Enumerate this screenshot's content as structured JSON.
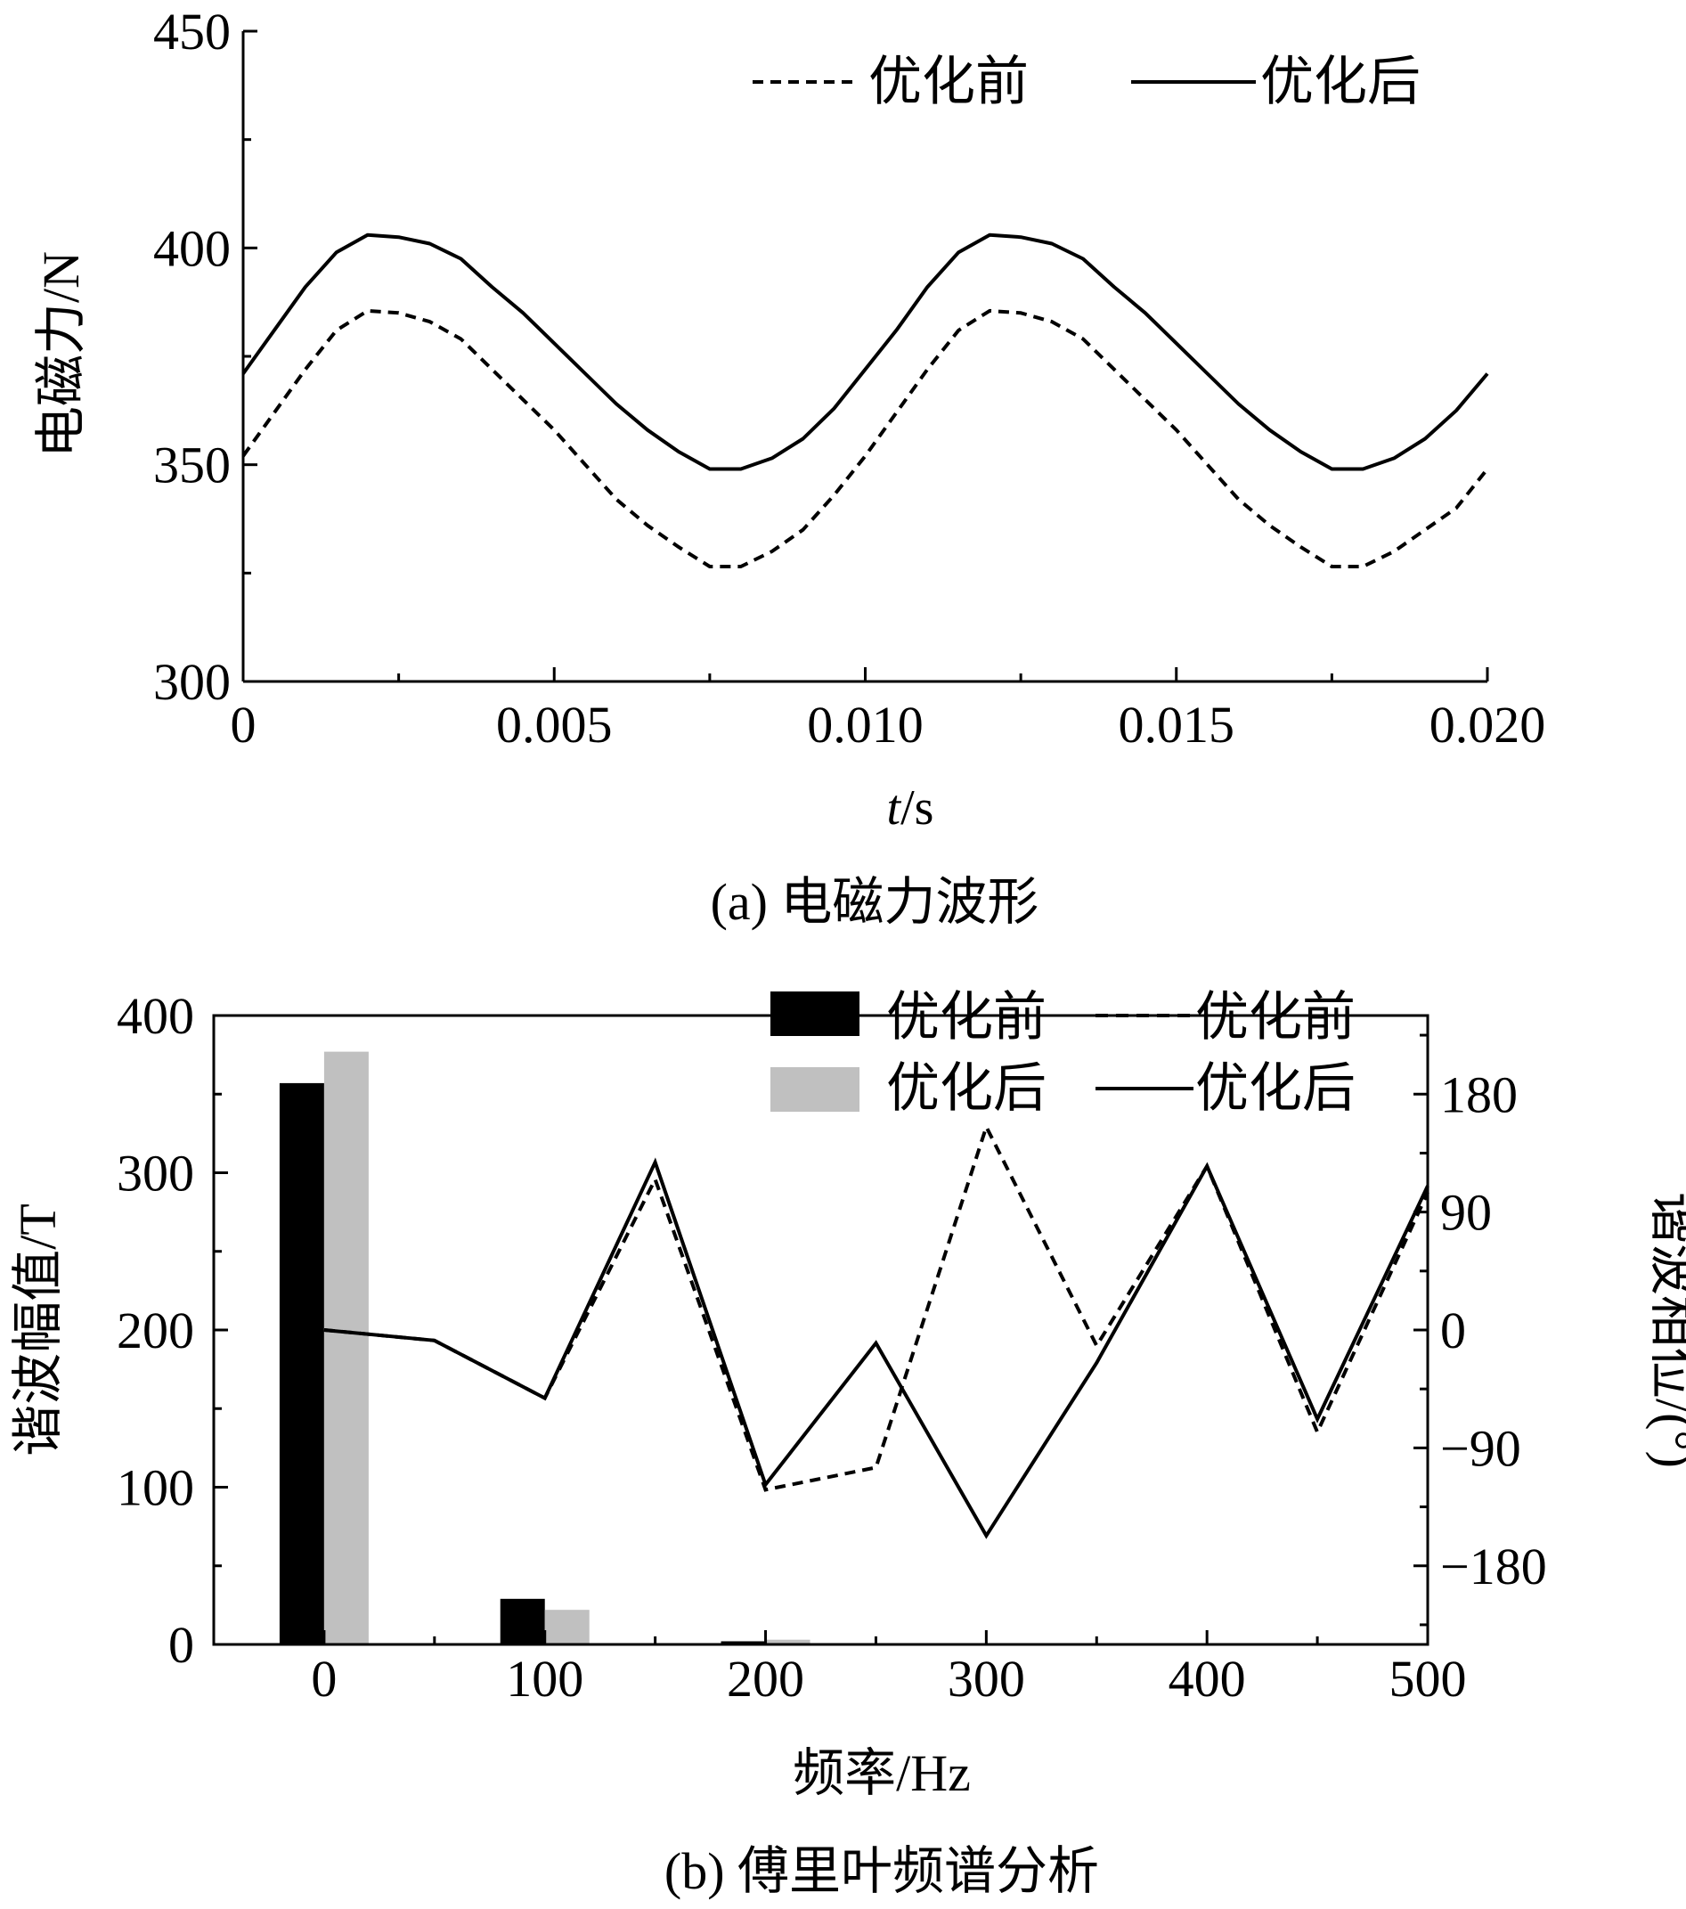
{
  "chart_data": [
    {
      "type": "line",
      "caption": "(a) 电磁力波形",
      "xlabel_italic": "t",
      "xlabel_rest": "/s",
      "ylabel": "电磁力/N",
      "xlim": [
        0,
        0.02
      ],
      "ylim": [
        300,
        450
      ],
      "xticks": [
        0,
        0.005,
        0.01,
        0.015,
        0.02
      ],
      "xtick_labels": [
        "0",
        "0.005",
        "0.010",
        "0.015",
        "0.020"
      ],
      "yticks": [
        300,
        350,
        400,
        450
      ],
      "ytick_labels": [
        "300",
        "350",
        "400",
        "450"
      ],
      "grid": false,
      "legend_position": "top-right",
      "series": [
        {
          "name": "优化前",
          "style": "dashed",
          "color": "#000000",
          "x": [
            0,
            0.0005,
            0.001,
            0.0015,
            0.002,
            0.0025,
            0.003,
            0.0035,
            0.004,
            0.0045,
            0.005,
            0.0055,
            0.006,
            0.0065,
            0.007,
            0.0075,
            0.008,
            0.0085,
            0.009,
            0.0095,
            0.01,
            0.0105,
            0.011,
            0.0115,
            0.012,
            0.0125,
            0.013,
            0.0135,
            0.014,
            0.0145,
            0.015,
            0.0155,
            0.016,
            0.0165,
            0.017,
            0.0175,
            0.018,
            0.0185,
            0.019,
            0.0195,
            0.02
          ],
          "y": [
            352,
            362,
            372,
            381,
            385.5,
            385,
            383,
            379,
            372,
            365,
            358,
            350,
            342,
            336,
            331,
            326.5,
            326.5,
            330,
            335,
            343,
            352,
            362,
            372,
            381,
            385.5,
            385,
            383,
            379,
            372,
            365,
            358,
            350,
            342,
            336,
            331,
            326.5,
            326.5,
            330,
            335,
            340,
            349
          ]
        },
        {
          "name": "优化后",
          "style": "solid",
          "color": "#000000",
          "x": [
            0,
            0.0005,
            0.001,
            0.0015,
            0.002,
            0.0025,
            0.003,
            0.0035,
            0.004,
            0.0045,
            0.005,
            0.0055,
            0.006,
            0.0065,
            0.007,
            0.0075,
            0.008,
            0.0085,
            0.009,
            0.0095,
            0.01,
            0.0105,
            0.011,
            0.0115,
            0.012,
            0.0125,
            0.013,
            0.0135,
            0.014,
            0.0145,
            0.015,
            0.0155,
            0.016,
            0.0165,
            0.017,
            0.0175,
            0.018,
            0.0185,
            0.019,
            0.0195,
            0.02
          ],
          "y": [
            371,
            381,
            391,
            399,
            403,
            402.5,
            401,
            397.5,
            391,
            385,
            378,
            371,
            364,
            358,
            353,
            349,
            349,
            351.5,
            356,
            363,
            372,
            381,
            391,
            399,
            403,
            402.5,
            401,
            397.5,
            391,
            385,
            378,
            371,
            364,
            358,
            353,
            349,
            349,
            351.5,
            356,
            362.5,
            371
          ]
        }
      ]
    },
    {
      "type": "bar",
      "secondary_type": "line",
      "caption": "(b) 傅里叶频谱分析",
      "xlabel": "频率/Hz",
      "ylabel": "谐波幅值/T",
      "ylabel_right": "谐波相位/(°)",
      "xlim": [
        -50,
        500
      ],
      "ylim": [
        0,
        400
      ],
      "ylim_right": [
        -240,
        240
      ],
      "xticks": [
        0,
        100,
        200,
        300,
        400,
        500
      ],
      "xtick_labels": [
        "0",
        "100",
        "200",
        "300",
        "400",
        "500"
      ],
      "yticks": [
        0,
        100,
        200,
        300,
        400
      ],
      "ytick_labels": [
        "0",
        "100",
        "200",
        "300",
        "400"
      ],
      "yticks_right": [
        -180,
        -90,
        0,
        90,
        180
      ],
      "ytick_labels_right": [
        "−180",
        "−90",
        "0",
        "90",
        "180"
      ],
      "grid": false,
      "legend_position": "top-right",
      "bar_categories": [
        0,
        100,
        200
      ],
      "bar_series": [
        {
          "name": "优化前",
          "color": "#000000",
          "values": [
            357,
            29,
            2
          ]
        },
        {
          "name": "优化后",
          "color": "#c0c0c0",
          "values": [
            377,
            22,
            3
          ]
        }
      ],
      "line_series": [
        {
          "name": "优化前",
          "style": "dashed",
          "color": "#000000",
          "x": [
            0,
            50,
            100,
            150,
            200,
            250,
            300,
            350,
            400,
            450,
            500
          ],
          "y": [
            0,
            -8,
            -52,
            115,
            -122,
            -105,
            155,
            -12,
            125,
            -78,
            105
          ]
        },
        {
          "name": "优化后",
          "style": "solid",
          "color": "#000000",
          "x": [
            0,
            50,
            100,
            150,
            200,
            250,
            300,
            350,
            400,
            450,
            500
          ],
          "y": [
            0,
            -8,
            -52,
            128,
            -118,
            -10,
            -157,
            -25,
            125,
            -68,
            110
          ]
        }
      ]
    }
  ]
}
